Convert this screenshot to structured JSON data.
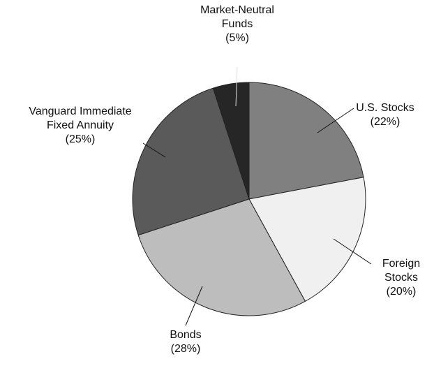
{
  "chart_data": {
    "type": "pie",
    "categories": [
      "U.S. Stocks",
      "Foreign Stocks",
      "Bonds",
      "Vanguard Immediate Fixed Annuity",
      "Market-Neutral Funds"
    ],
    "values": [
      22,
      20,
      28,
      25,
      5
    ],
    "value_labels": [
      "(22%)",
      "(20%)",
      "(28%)",
      "(25%)",
      "(5%)"
    ],
    "colors": [
      "#808080",
      "#f0f0f0",
      "#bdbdbd",
      "#5a5a5a",
      "#262626"
    ]
  }
}
